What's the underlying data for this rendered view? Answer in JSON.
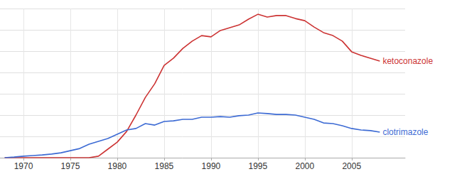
{
  "chart_data": {
    "type": "line",
    "x": [
      1968,
      1969,
      1970,
      1971,
      1972,
      1973,
      1974,
      1975,
      1976,
      1977,
      1978,
      1979,
      1980,
      1981,
      1982,
      1983,
      1984,
      1985,
      1986,
      1987,
      1988,
      1989,
      1990,
      1991,
      1992,
      1993,
      1994,
      1995,
      1996,
      1997,
      1998,
      1999,
      2000,
      2001,
      2002,
      2003,
      2004,
      2005,
      2006,
      2007,
      2008
    ],
    "series": [
      {
        "name": "ketoconazole",
        "color": "#cc3333",
        "values": [
          0,
          0,
          0,
          0,
          0,
          0,
          0,
          0,
          0,
          0,
          0.07,
          0.4,
          0.73,
          1.23,
          2.0,
          2.83,
          3.47,
          4.33,
          4.67,
          5.13,
          5.47,
          5.73,
          5.67,
          5.97,
          6.1,
          6.23,
          6.5,
          6.73,
          6.6,
          6.67,
          6.67,
          6.53,
          6.43,
          6.13,
          5.87,
          5.73,
          5.47,
          4.97,
          4.8,
          4.67,
          4.53
        ]
      },
      {
        "name": "clotrimazole",
        "color": "#3d6bd4",
        "values": [
          0,
          0.03,
          0.07,
          0.1,
          0.13,
          0.17,
          0.23,
          0.33,
          0.43,
          0.63,
          0.77,
          0.9,
          1.1,
          1.3,
          1.37,
          1.6,
          1.53,
          1.7,
          1.73,
          1.8,
          1.8,
          1.9,
          1.9,
          1.93,
          1.9,
          1.97,
          2.0,
          2.1,
          2.07,
          2.03,
          2.03,
          2.0,
          1.9,
          1.8,
          1.63,
          1.6,
          1.5,
          1.37,
          1.3,
          1.27,
          1.2
        ]
      }
    ],
    "xlim": [
      1967.5,
      2010.7
    ],
    "xticks": [
      1970,
      1975,
      1980,
      1985,
      1990,
      1995,
      2000,
      2005
    ],
    "ylim": [
      0,
      7
    ],
    "yticks": [
      0,
      1,
      2,
      3,
      4,
      5,
      6,
      7
    ],
    "grid": true,
    "tick_labels": "x"
  }
}
